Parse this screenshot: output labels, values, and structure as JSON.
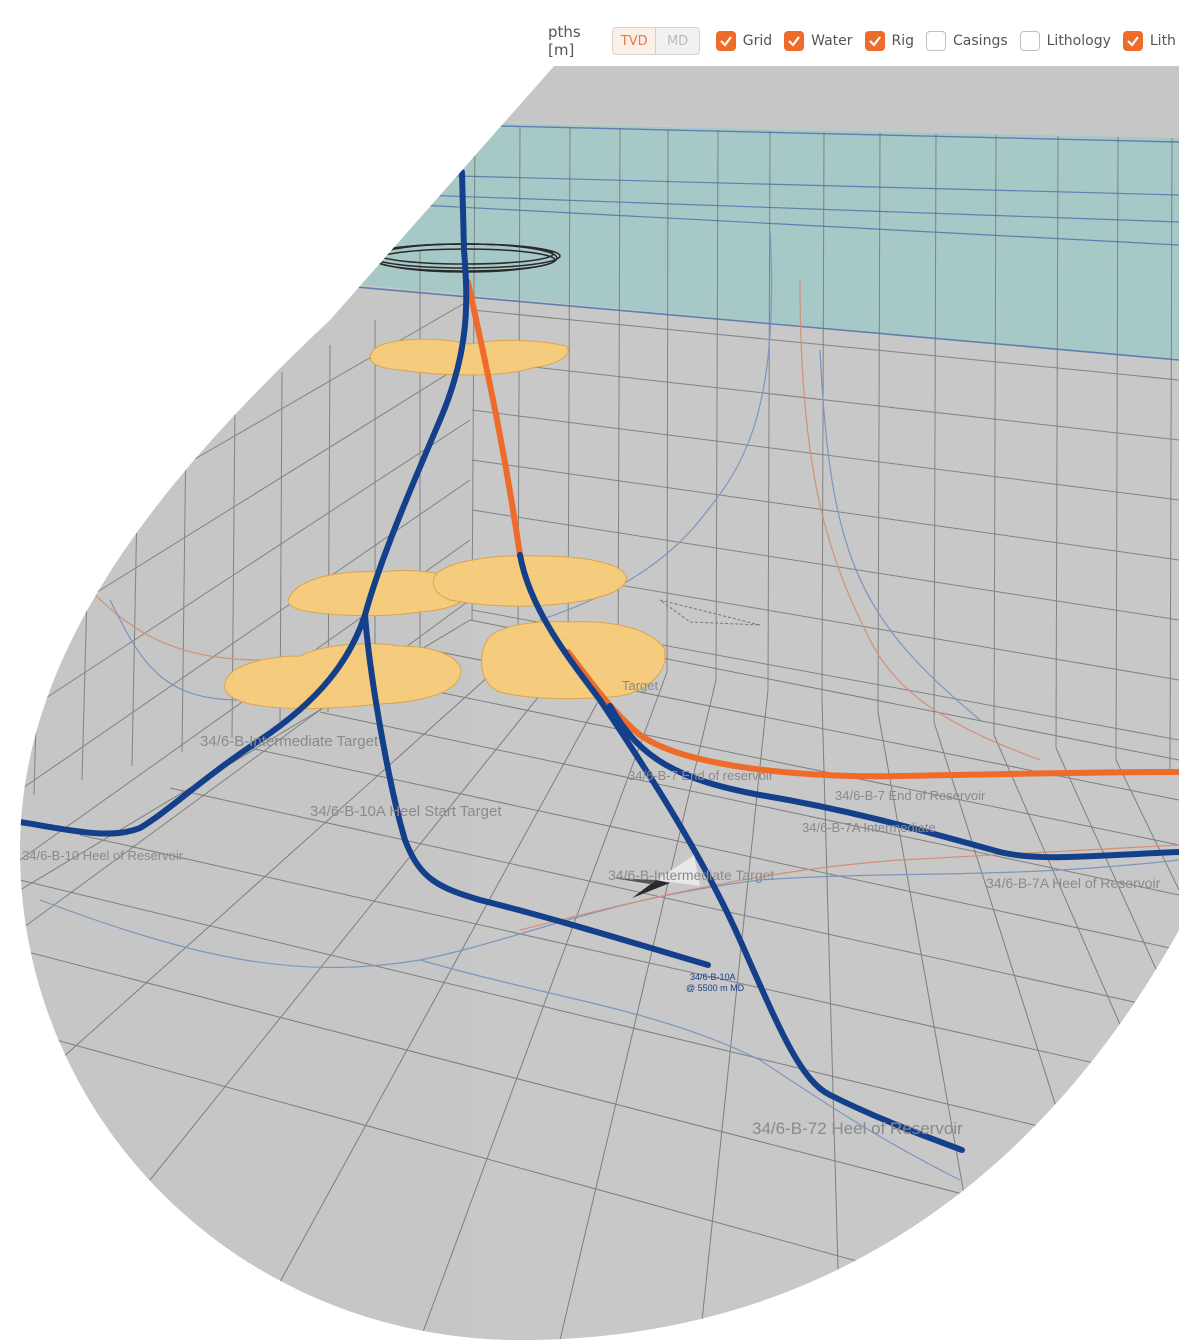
{
  "toolbar": {
    "depths_label": "pths [m]",
    "mode_tvd": "TVD",
    "mode_md": "MD",
    "toggles": [
      {
        "label": "Grid",
        "checked": true
      },
      {
        "label": "Water",
        "checked": true
      },
      {
        "label": "Rig",
        "checked": true
      },
      {
        "label": "Casings",
        "checked": false
      },
      {
        "label": "Lithology",
        "checked": false
      },
      {
        "label": "Lith",
        "checked": true
      }
    ]
  },
  "scene": {
    "labels": {
      "intermediate_target": "34/6-B-Intermediate Target",
      "start_target": "34/6-B-10A Heel Start Target",
      "heel_10": "34/6-B-10 Heel of Reservoir",
      "target": "Target",
      "end_reservoir_a": "34/6-B-7 End of reservoir",
      "end_reservoir_b": "34/6-B-7 End of Reservoir",
      "intermediate_7a": "34/6-B-7A Intermediate",
      "intermediate_target_2": "34/6-B-Intermediate Target",
      "heel_7a": "34/6-B-7A Heel of Reservoir",
      "well_tag_name": "34/6-B-10A",
      "well_tag_depth": "@ 5500 m MD",
      "heel_72": "34/6-B-72 Heel of Reservoir"
    },
    "colors": {
      "floor": "#c6c6c6",
      "water": "#a6c8c6",
      "grid": "#6c6c6c",
      "well_primary": "#143f8a",
      "well_secondary": "#ee6b2a",
      "reservoir": "#f8cd7b",
      "label": "#8a8a8a"
    }
  }
}
